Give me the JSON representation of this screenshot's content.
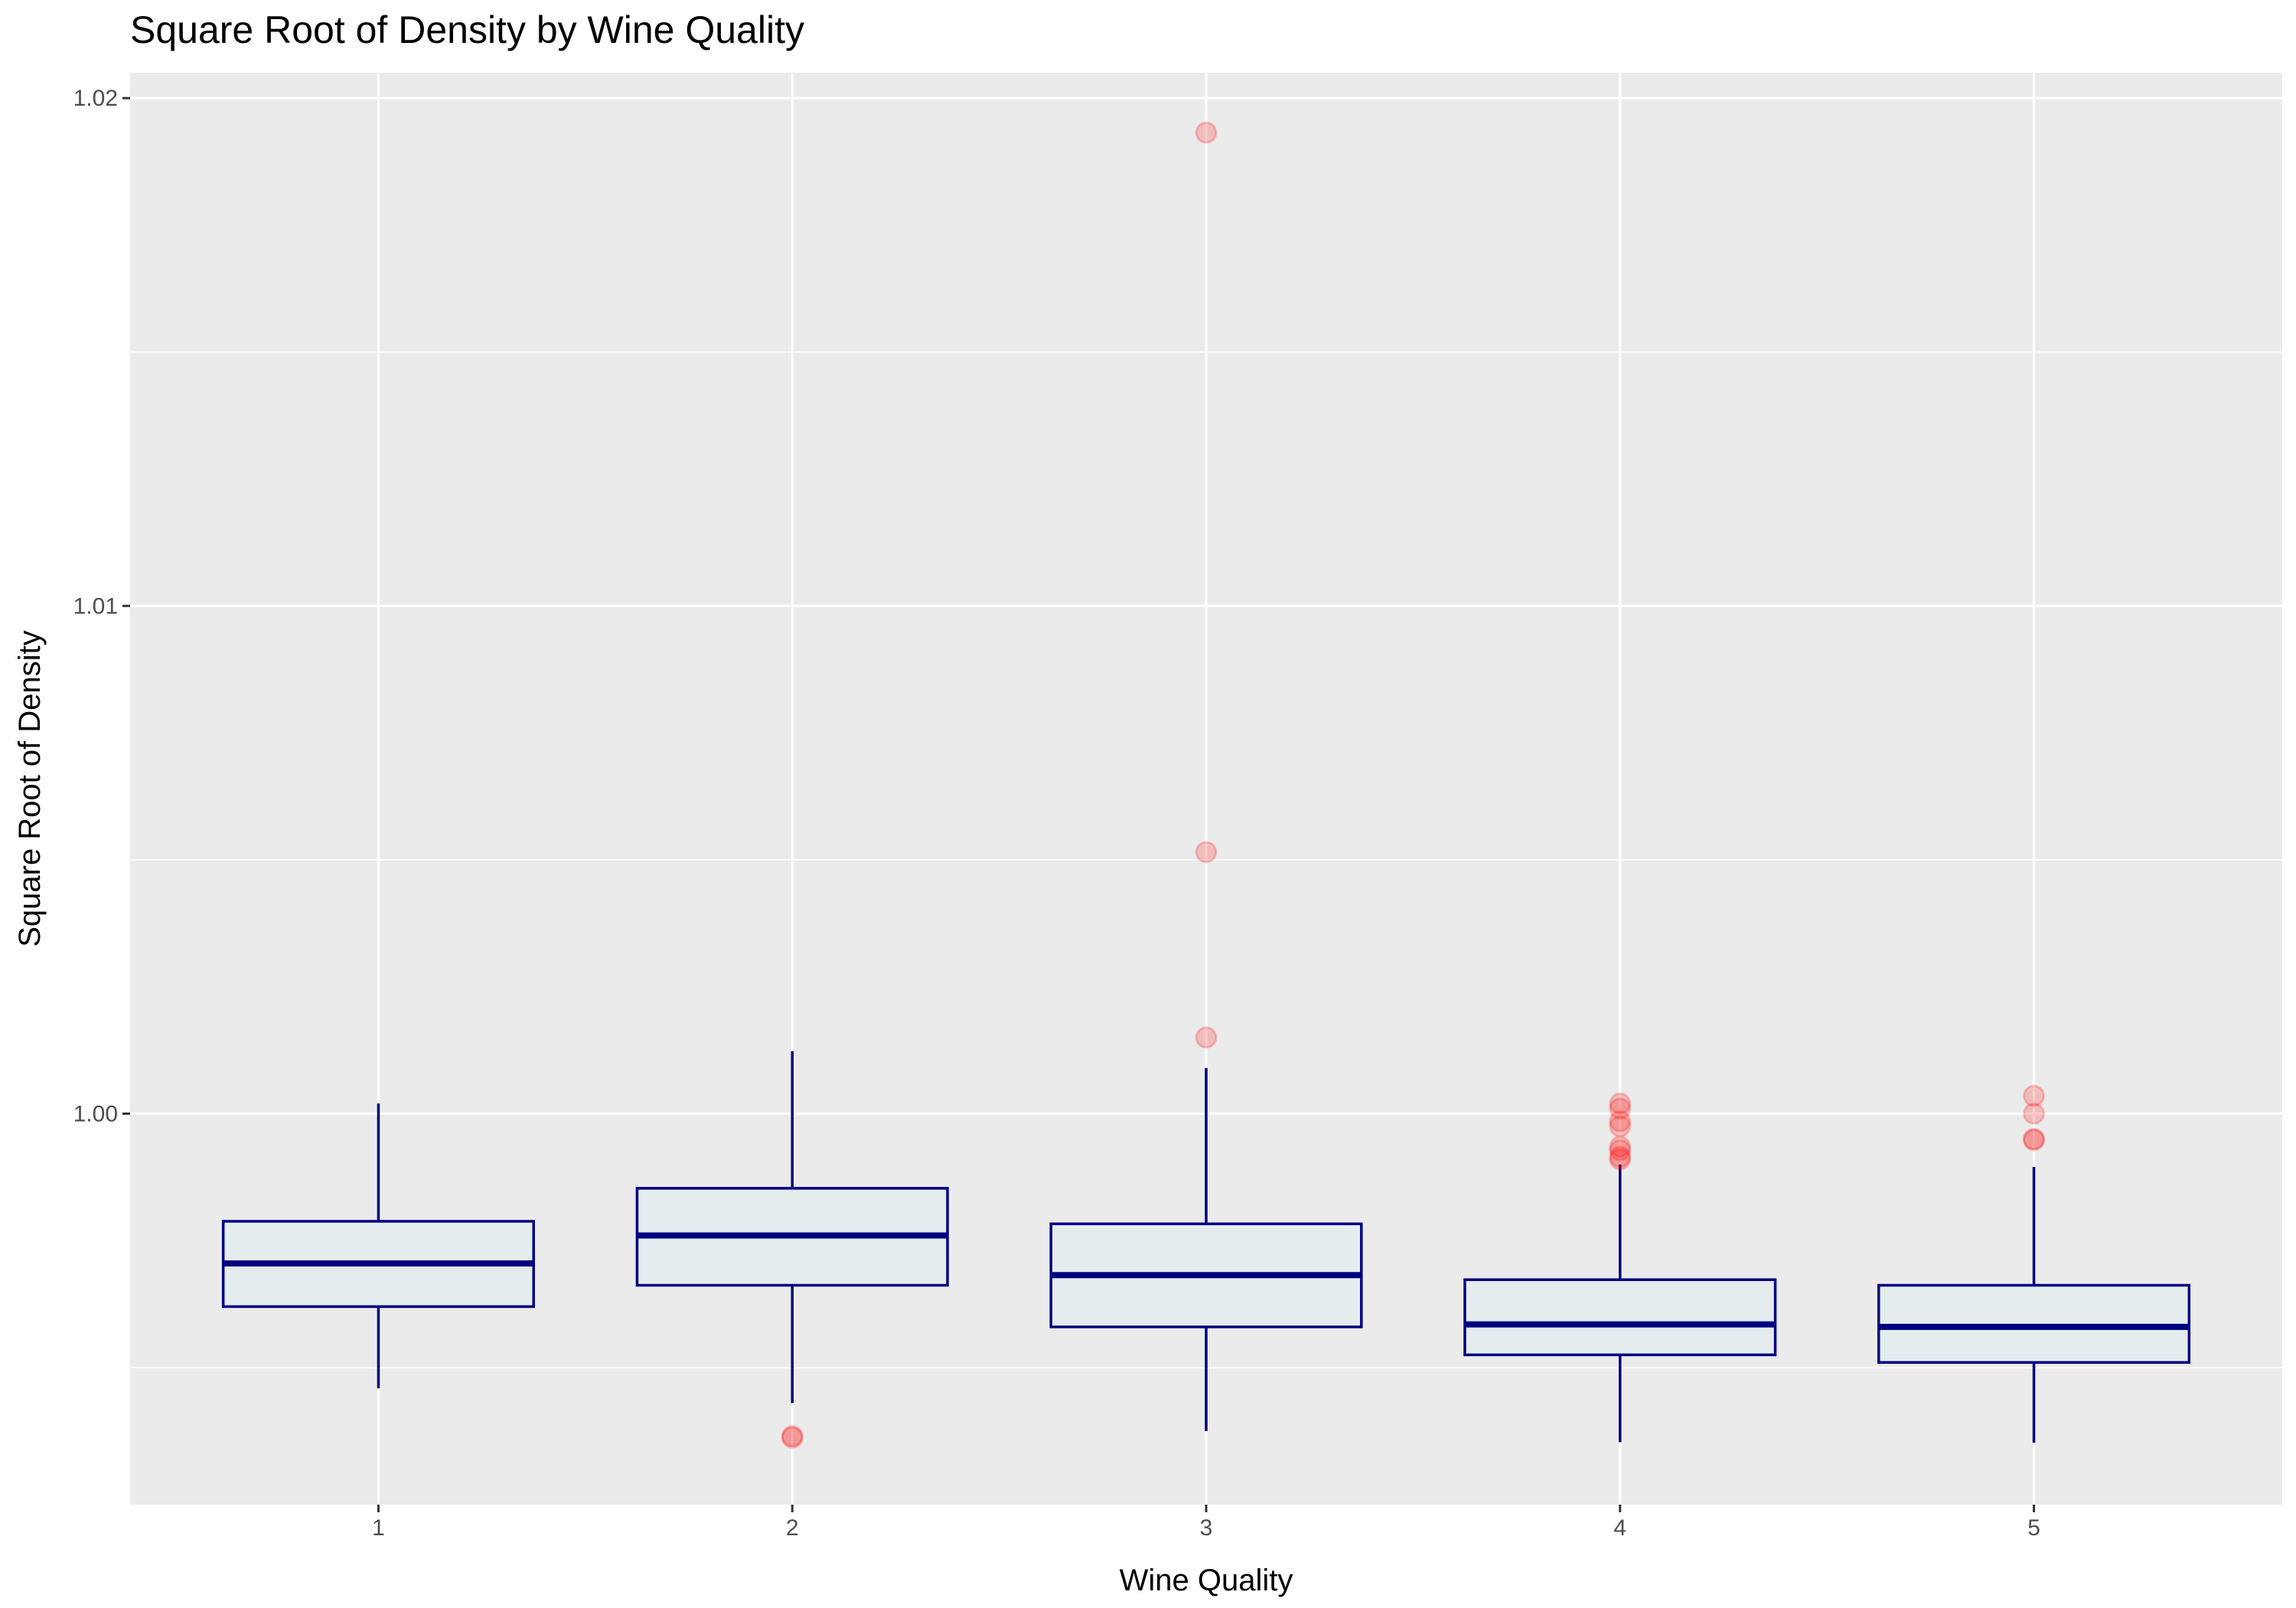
{
  "chart_data": {
    "type": "boxplot",
    "title": "Square Root of Density by Wine Quality",
    "xlabel": "Wine Quality",
    "ylabel": "Square Root of Density",
    "categories": [
      "1",
      "2",
      "3",
      "4",
      "5"
    ],
    "ylim": [
      0.9923,
      1.0205
    ],
    "y_ticks": [
      1.0,
      1.01,
      1.02
    ],
    "y_tick_labels": [
      "1.00",
      "1.01",
      "1.02"
    ],
    "y_minor_ticks": [
      0.995,
      1.005,
      1.015
    ],
    "grid": true,
    "colors": {
      "panel_background": "#ebebeb",
      "grid": "#ffffff",
      "box_fill": "#e5ecee",
      "box_stroke": "#000080",
      "outlier": "#ff0000"
    },
    "boxes": [
      {
        "category": "1",
        "whisker_low": 0.99459,
        "q1": 0.9962,
        "median": 0.99705,
        "q3": 0.99788,
        "whisker_high": 1.0002,
        "outliers": []
      },
      {
        "category": "2",
        "whisker_low": 0.9943,
        "q1": 0.99662,
        "median": 0.9976,
        "q3": 0.99853,
        "whisker_high": 1.00123,
        "outliers": [
          0.99365,
          0.99362
        ]
      },
      {
        "category": "3",
        "whisker_low": 0.99375,
        "q1": 0.9958,
        "median": 0.99682,
        "q3": 0.99783,
        "whisker_high": 1.0009,
        "outliers": [
          1.01932,
          1.00515,
          1.0015
        ]
      },
      {
        "category": "4",
        "whisker_low": 0.99353,
        "q1": 0.99525,
        "median": 0.99585,
        "q3": 0.99673,
        "whisker_high": 0.999,
        "outliers": [
          1.0002,
          1.0001,
          0.99985,
          0.99975,
          0.99935,
          0.99928,
          0.99915,
          0.9991
        ]
      },
      {
        "category": "5",
        "whisker_low": 0.99352,
        "q1": 0.9951,
        "median": 0.9958,
        "q3": 0.99662,
        "whisker_high": 0.99895,
        "outliers": [
          1.00035,
          1.0,
          0.9995,
          0.99948
        ]
      }
    ]
  }
}
